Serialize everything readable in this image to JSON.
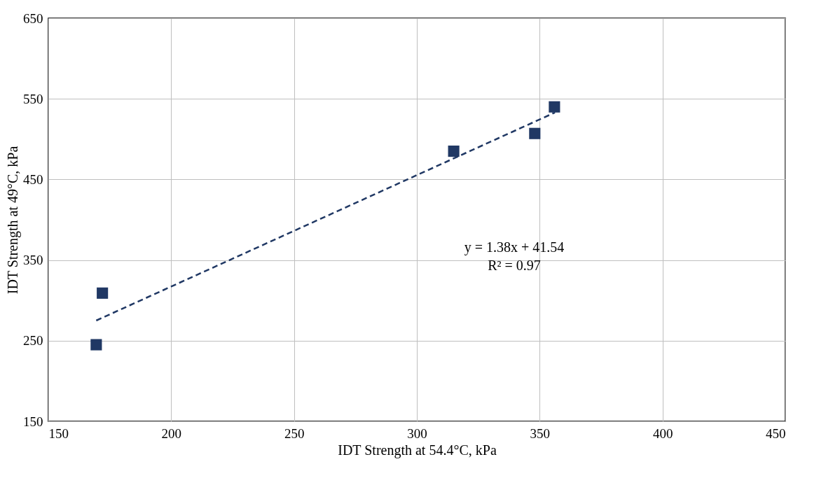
{
  "chart_data": {
    "type": "scatter",
    "xlabel": "IDT Strength at 54.4°C, kPa",
    "ylabel": "IDT Strength at 49°C, kPa",
    "xlim": [
      150,
      450
    ],
    "xticks": [
      150,
      200,
      250,
      300,
      350,
      400,
      450
    ],
    "ylim": [
      150,
      650
    ],
    "yticks": [
      150,
      250,
      350,
      450,
      550,
      650
    ],
    "grid": true,
    "series": [
      {
        "type": "scatter",
        "color": "#203864",
        "marker": "square",
        "x": [
          169.5,
          172,
          315,
          348,
          356
        ],
        "values": [
          245,
          309,
          485,
          507,
          540
        ]
      },
      {
        "type": "line",
        "color": "#203864",
        "line_style": "dashed",
        "marker": "none",
        "x": [
          169.5,
          356.2
        ],
        "values": [
          275,
          533
        ]
      }
    ],
    "annotations": [
      "y = 1.38x + 41.54",
      "R² = 0.97"
    ]
  }
}
